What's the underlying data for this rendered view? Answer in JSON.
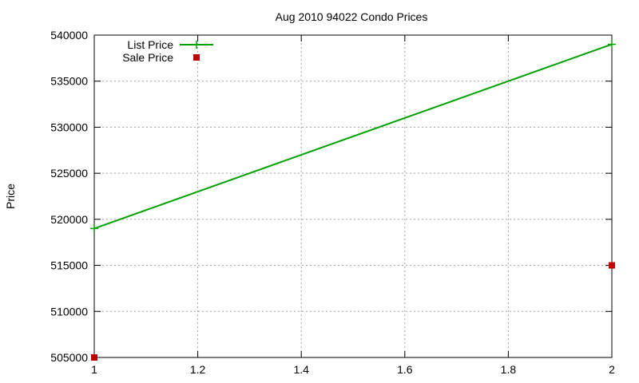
{
  "chart_data": {
    "type": "line",
    "title": "Aug 2010 94022 Condo Prices",
    "xlabel": "",
    "ylabel": "Price",
    "xlim": [
      1,
      2
    ],
    "ylim": [
      505000,
      540000
    ],
    "xticks": [
      1,
      1.2,
      1.4,
      1.6,
      1.8,
      2
    ],
    "yticks": [
      505000,
      510000,
      515000,
      520000,
      525000,
      530000,
      535000,
      540000
    ],
    "grid": true,
    "legend_position": "top-left",
    "series": [
      {
        "name": "List Price",
        "style": "linespoints",
        "color": "#00a000",
        "x": [
          1,
          2
        ],
        "y": [
          519000,
          539000
        ]
      },
      {
        "name": "Sale Price",
        "style": "points",
        "color": "#c00000",
        "x": [
          1,
          2
        ],
        "y": [
          505000,
          515000
        ]
      }
    ]
  }
}
